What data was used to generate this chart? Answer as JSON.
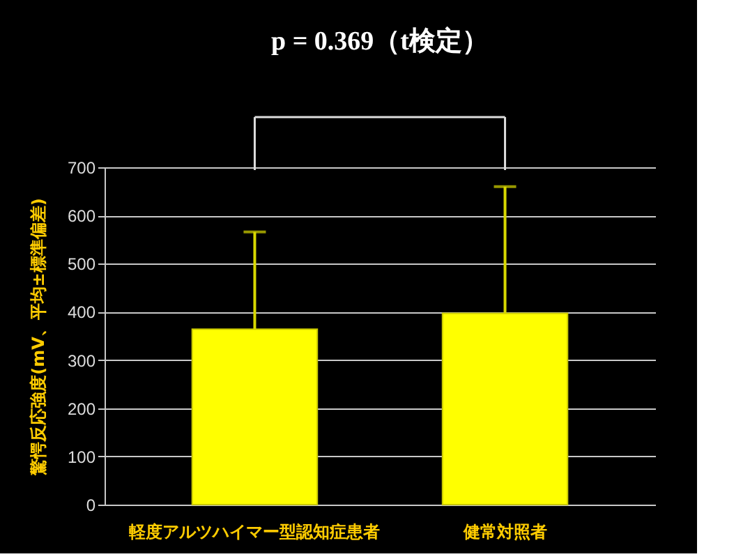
{
  "chart_data": {
    "type": "bar",
    "title": "p = 0.369（t検定）",
    "ylabel": "驚愕反応強度(mV、平均±標準偏差)",
    "categories": [
      "軽度アルツハイマー型認知症患者",
      "健常対照者"
    ],
    "values": [
      364,
      397
    ],
    "errors": [
      202,
      263
    ],
    "color": "#ffff00",
    "ylim": [
      0,
      700
    ],
    "yticks": [
      0,
      100,
      200,
      300,
      400,
      500,
      600,
      700
    ],
    "grid": "y"
  }
}
